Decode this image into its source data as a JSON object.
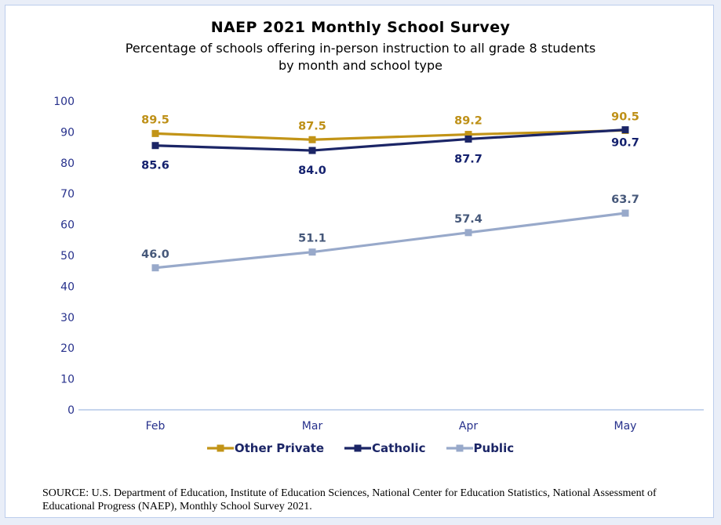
{
  "window": {
    "outer_background": "#E9EEF8",
    "panel_background": "#FFFFFF",
    "panel_border": "#BCCDEC"
  },
  "chart_data": {
    "type": "line",
    "title": "NAEP 2021 Monthly School Survey",
    "subtitle": "Percentage of schools offering in-person instruction to all grade 8 students\nby month and school type",
    "categories": [
      "Feb",
      "Mar",
      "Apr",
      "May"
    ],
    "series": [
      {
        "name": "Other Private",
        "values": [
          89.5,
          87.5,
          89.2,
          90.5
        ],
        "color": "#C29417",
        "label_color": "#BE9017"
      },
      {
        "name": "Catholic",
        "values": [
          85.6,
          84.0,
          87.7,
          90.7
        ],
        "color": "#1B2566",
        "label_color": "#14216E"
      },
      {
        "name": "Public",
        "values": [
          46.0,
          51.1,
          57.4,
          63.7
        ],
        "color": "#98A9CA",
        "label_color": "#46587A"
      }
    ],
    "xlabel": "",
    "ylabel": "",
    "ylim": [
      0,
      100
    ],
    "ytick_step": 10,
    "grid": false,
    "legend_position": "bottom",
    "legend_text_color": "#1B2566",
    "axis_label_color": "#27318C",
    "axis_line_color": "#B4C7E7",
    "marker": "square",
    "data_labels_shown": true
  },
  "source": {
    "text": "SOURCE: U.S. Department of Education, Institute of Education Sciences, National Center for Education Statistics, National Assessment of\nEducational Progress (NAEP), Monthly School Survey 2021."
  }
}
